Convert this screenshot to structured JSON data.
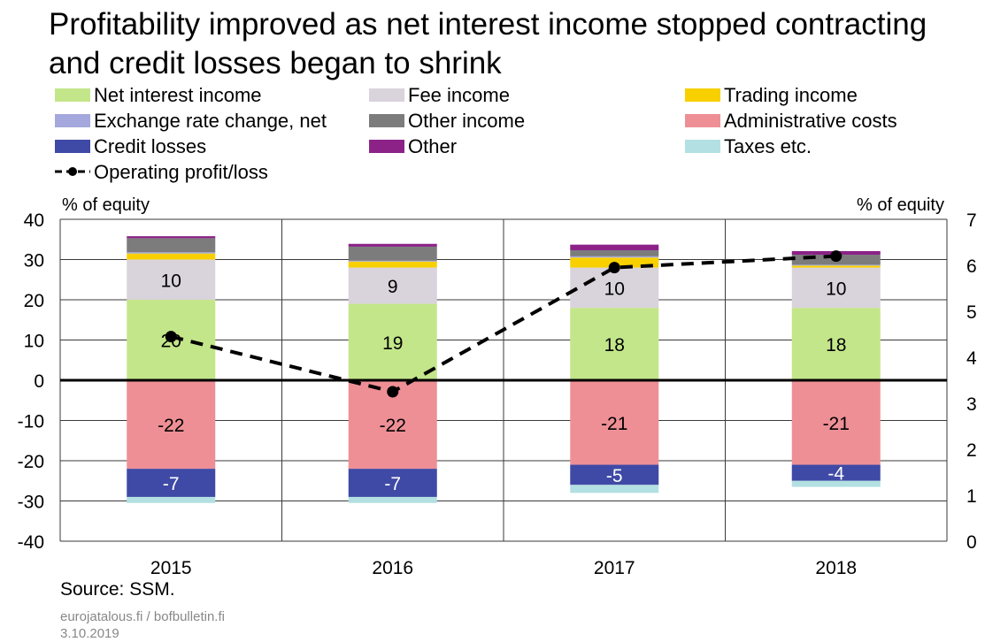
{
  "title_line1": "Profitability improved as net interest income stopped contracting",
  "title_line2": "and credit losses began to shrink",
  "legend": [
    {
      "label": "Net interest income",
      "color": "#c3e68a",
      "kind": "box"
    },
    {
      "label": "Fee income",
      "color": "#d9d3dc",
      "kind": "box"
    },
    {
      "label": "Trading income",
      "color": "#f8d000",
      "kind": "box"
    },
    {
      "label": "Exchange rate change, net",
      "color": "#a4a8dc",
      "kind": "box"
    },
    {
      "label": "Other income",
      "color": "#7c7c7c",
      "kind": "box"
    },
    {
      "label": "Administrative costs",
      "color": "#ee8f96",
      "kind": "box"
    },
    {
      "label": "Credit losses",
      "color": "#3f4aa6",
      "kind": "box"
    },
    {
      "label": "Other",
      "color": "#8c2287",
      "kind": "box"
    },
    {
      "label": "Taxes etc.",
      "color": "#b3e0e2",
      "kind": "box"
    },
    {
      "label": "Operating profit/loss",
      "color": "#000000",
      "kind": "line"
    }
  ],
  "left_axis_unit": "% of equity",
  "right_axis_unit": "% of equity",
  "source": "Source: SSM.",
  "site": "eurojatalous.fi / bofbulletin.fi",
  "date": "3.10.2019",
  "chart_data": {
    "type": "bar",
    "stacked": true,
    "categories": [
      "2015",
      "2016",
      "2017",
      "2018"
    ],
    "ylim_left": [
      -40,
      40
    ],
    "yticks_left": [
      -40,
      -30,
      -20,
      -10,
      0,
      10,
      20,
      30,
      40
    ],
    "ylim_right": [
      0,
      7
    ],
    "yticks_right": [
      0,
      1,
      2,
      3,
      4,
      5,
      6,
      7
    ],
    "grid": true,
    "series": [
      {
        "name": "Net interest income",
        "color": "#c3e68a",
        "values": [
          20,
          19,
          18,
          18
        ],
        "labels": [
          "20",
          "19",
          "18",
          "18"
        ]
      },
      {
        "name": "Fee income",
        "color": "#d9d3dc",
        "values": [
          10,
          9,
          10,
          10
        ],
        "labels": [
          "10",
          "9",
          "10",
          "10"
        ]
      },
      {
        "name": "Trading income",
        "color": "#f8d000",
        "values": [
          1.5,
          1.5,
          2.5,
          0.5
        ]
      },
      {
        "name": "Exchange rate change, net",
        "color": "#a4a8dc",
        "values": [
          0.3,
          0.2,
          0.3,
          0.2
        ]
      },
      {
        "name": "Other income",
        "color": "#7c7c7c",
        "values": [
          3.5,
          3.5,
          1.5,
          2.5
        ]
      },
      {
        "name": "Administrative costs",
        "color": "#ee8f96",
        "values": [
          -22,
          -22,
          -21,
          -21
        ],
        "labels": [
          "-22",
          "-22",
          "-21",
          "-21"
        ]
      },
      {
        "name": "Credit losses",
        "color": "#3f4aa6",
        "values": [
          -7,
          -7,
          -5,
          -4
        ],
        "labels": [
          "-7",
          "-7",
          "-5",
          "-4"
        ]
      },
      {
        "name": "Other",
        "color": "#8c2287",
        "values": [
          0.5,
          0.7,
          1.4,
          0.9
        ]
      },
      {
        "name": "Taxes etc.",
        "color": "#b3e0e2",
        "values": [
          -1.5,
          -1.5,
          -2,
          -1.5
        ]
      }
    ],
    "line": {
      "name": "Operating profit/loss",
      "axis": "right",
      "values": [
        4.45,
        3.25,
        5.95,
        6.2
      ]
    }
  }
}
